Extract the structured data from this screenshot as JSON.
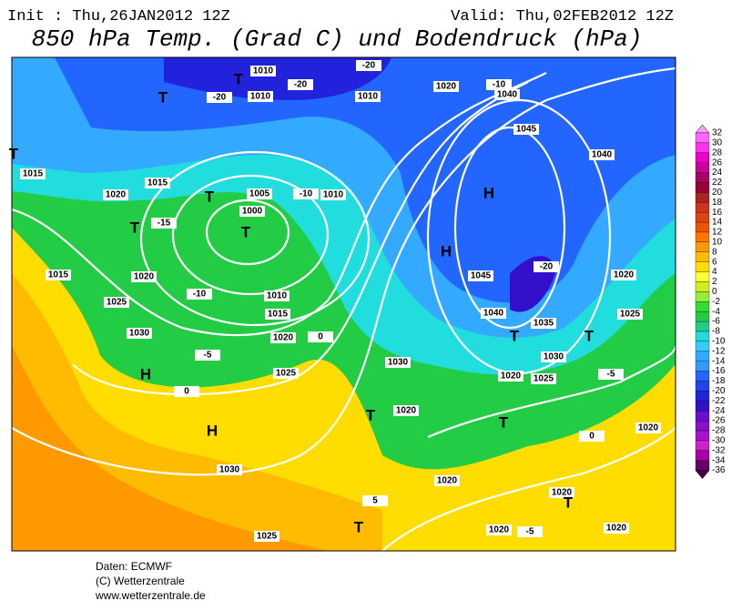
{
  "header": {
    "init": "Init : Thu,26JAN2012 12Z",
    "valid": "Valid: Thu,02FEB2012 12Z",
    "title": "850 hPa Temp. (Grad C) und Bodendruck (hPa)"
  },
  "legend": {
    "levels": [
      "32",
      "30",
      "28",
      "26",
      "24",
      "22",
      "20",
      "18",
      "16",
      "14",
      "12",
      "10",
      "8",
      "6",
      "4",
      "2",
      "0",
      "-2",
      "-4",
      "-6",
      "-8",
      "-10",
      "-12",
      "-14",
      "-16",
      "-18",
      "-20",
      "-22",
      "-24",
      "-26",
      "-28",
      "-30",
      "-32",
      "-34",
      "-36"
    ],
    "colors": [
      "#ff99ff",
      "#ff66ff",
      "#ff33ee",
      "#ee00cc",
      "#cc0099",
      "#aa0066",
      "#990033",
      "#aa2222",
      "#cc3322",
      "#dd4411",
      "#ee5500",
      "#ff7700",
      "#ff9900",
      "#ffbb00",
      "#ffdd00",
      "#ffff33",
      "#ccee22",
      "#99ee33",
      "#33dd33",
      "#22cc44",
      "#22cc88",
      "#22dddd",
      "#33ccff",
      "#33aaff",
      "#3399ff",
      "#2266ff",
      "#2244ee",
      "#2222dd",
      "#3311cc",
      "#6611cc",
      "#8811cc",
      "#aa11cc",
      "#cc22cc",
      "#aa00aa",
      "#660066",
      "#440044"
    ]
  },
  "map_labels": [
    "-20",
    "1010",
    "-20",
    "1010",
    "-20",
    "1010",
    "1020",
    "-10",
    "1040",
    "1045",
    "1040",
    "1015",
    "1015",
    "1020",
    "-15",
    "1005",
    "1000",
    "-10",
    "1010",
    "1015",
    "1020",
    "-10",
    "1010",
    "1025",
    "1015",
    "1030",
    "1020",
    "0",
    "-5",
    "1025",
    "0",
    "1030",
    "1045",
    "-20",
    "1040",
    "1035",
    "1030",
    "1020",
    "1025",
    "-5",
    "1020",
    "1025",
    "1020",
    "0",
    "1020",
    "1030",
    "1020",
    "1020",
    "1020",
    "1020",
    "1025",
    "5",
    "-5"
  ],
  "map_symbols": [
    "H",
    "H",
    "H",
    "H",
    "T",
    "T",
    "T",
    "T",
    "T",
    "T",
    "T",
    "T",
    "T",
    "T",
    "T",
    "T"
  ],
  "footer": [
    "Daten: ECMWF",
    "(C) Wetterzentrale",
    "www.wetterzentrale.de"
  ]
}
